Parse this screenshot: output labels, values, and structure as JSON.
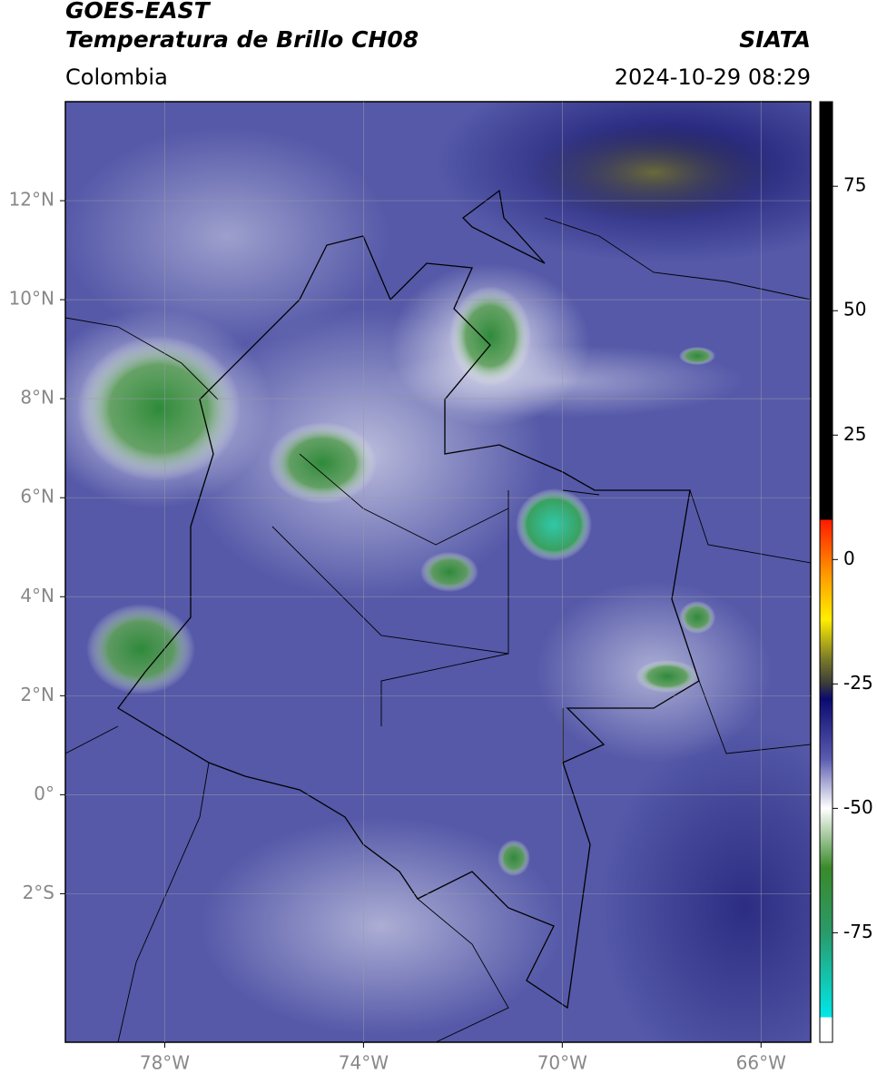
{
  "header": {
    "title": "GOES-EAST",
    "subtitle": "Temperatura de Brillo CH08",
    "source": "SIATA",
    "region": "Colombia",
    "datetime": "2024-10-29 08:29"
  },
  "map": {
    "xlim": [
      -80,
      -65
    ],
    "ylim": [
      -5,
      14
    ],
    "xticks": [
      {
        "value": -78,
        "label": "78°W"
      },
      {
        "value": -74,
        "label": "74°W"
      },
      {
        "value": -70,
        "label": "70°W"
      },
      {
        "value": -66,
        "label": "66°W"
      }
    ],
    "yticks": [
      {
        "value": 12,
        "label": "12°N"
      },
      {
        "value": 10,
        "label": "10°N"
      },
      {
        "value": 8,
        "label": "8°N"
      },
      {
        "value": 6,
        "label": "6°N"
      },
      {
        "value": 4,
        "label": "4°N"
      },
      {
        "value": 2,
        "label": "2°N"
      },
      {
        "value": 0,
        "label": "0°"
      },
      {
        "value": -2,
        "label": "2°S"
      }
    ],
    "grid": true
  },
  "colorbar": {
    "lim": [
      -97,
      92
    ],
    "ticks": [
      75,
      50,
      25,
      0,
      -25,
      -50,
      -75
    ],
    "stops": [
      {
        "value": 92,
        "color": "#000000"
      },
      {
        "value": 8,
        "color": "#000000"
      },
      {
        "value": 8,
        "color": "#ff1a00"
      },
      {
        "value": -3,
        "color": "#ff9900"
      },
      {
        "value": -12,
        "color": "#ffee00"
      },
      {
        "value": -20,
        "color": "#7a7a2a"
      },
      {
        "value": -25,
        "color": "#3a3a3a"
      },
      {
        "value": -28,
        "color": "#0a0a70"
      },
      {
        "value": -40,
        "color": "#5a5ab0"
      },
      {
        "value": -50,
        "color": "#ffffff"
      },
      {
        "value": -62,
        "color": "#3a8a2a"
      },
      {
        "value": -75,
        "color": "#2a9a6a"
      },
      {
        "value": -92,
        "color": "#00e8e8"
      },
      {
        "value": -92,
        "color": "#ffffff"
      },
      {
        "value": -97,
        "color": "#ffffff"
      }
    ]
  }
}
